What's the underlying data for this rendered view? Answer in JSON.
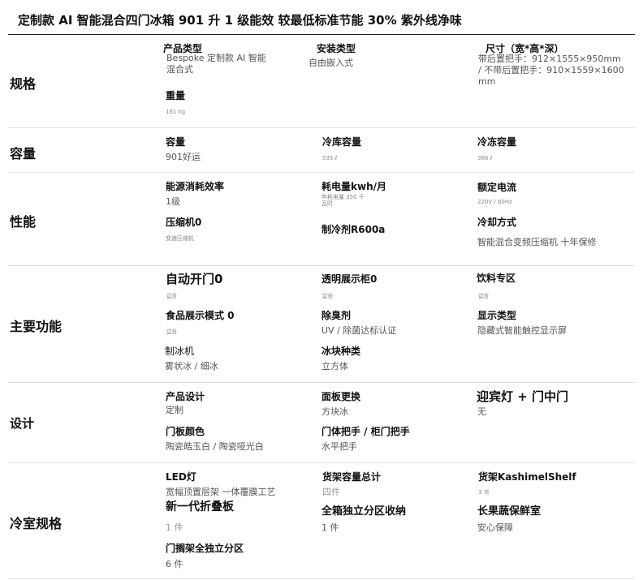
{
  "title": "定制款 AI 智能混合四门冰箱 901 升 1 级能效 较最低标准节能 30% 紫外线净味",
  "sections": [
    {
      "name": "规格",
      "items": [
        {
          "label": "产品类型",
          "value": "Bespoke 定制款 AI 智能混合式"
        },
        {
          "label": "安装类型",
          "value": "自由嵌入式"
        },
        {
          "label": "尺寸（宽*高*深）",
          "value": "带后置把手：912×1555×950mm / 不带后置把手：910×1559×1600mm"
        },
        {
          "label": "重量",
          "value": "161 kg"
        }
      ]
    },
    {
      "name": "容量",
      "items": [
        {
          "label": "容量",
          "value": "901好运"
        },
        {
          "label": "冷库容量",
          "value": "535 ℓ"
        },
        {
          "label": "冷冻容量",
          "value": "366 ℓ"
        }
      ]
    },
    {
      "name": "性能",
      "items": [
        {
          "label": "能源消耗效率",
          "value": "1级"
        },
        {
          "label": "耗电量kwh/月",
          "value": "年耗电量 350 千瓦时"
        },
        {
          "label": "额定电流",
          "value": "220V / 60Hz"
        },
        {
          "label": "压缩机0",
          "value": "变速压缩机"
        },
        {
          "label": "制冷剂R600a",
          "value": ""
        },
        {
          "label": "冷却方式",
          "value": "智能混合变频压缩机 十年保修"
        }
      ]
    },
    {
      "name": "主要功能",
      "items": [
        {
          "label": "自动开门0",
          "value": "없음"
        },
        {
          "label": "透明展示柜0",
          "value": "없음"
        },
        {
          "label": "饮料专区",
          "value": "없음"
        },
        {
          "label": "食品展示模式 0",
          "value": "없음"
        },
        {
          "label": "除臭剂",
          "value": "UV / 除菌达标认证"
        },
        {
          "label": "显示类型",
          "value": "隐藏式智能触控显示屏"
        },
        {
          "label": "制冰机",
          "value": "雾状冰 / 细冰"
        },
        {
          "label": "冰块种类",
          "value": "立方体"
        }
      ]
    },
    {
      "name": "设计",
      "items": [
        {
          "label": "产品设计",
          "value": "定制"
        },
        {
          "label": "面板更换",
          "value": "方块冰"
        },
        {
          "label": "迎宾灯 + 门中门",
          "value": "无"
        },
        {
          "label": "门板颜色",
          "value": "陶瓷皓玉白 / 陶瓷哑光白"
        },
        {
          "label": "门体把手 / 柜门把手",
          "value": "水平把手"
        }
      ]
    },
    {
      "name": "冷室规格",
      "items": [
        {
          "label": "LED灯",
          "value": "宽幅顶置层架 一体覆膜工艺"
        },
        {
          "label": "货架容量总计",
          "value": "四件"
        },
        {
          "label": "货架KashimelShelf",
          "value": "3 개"
        },
        {
          "label": "新一代折叠板",
          "value": "1 件"
        },
        {
          "label": "全箱独立分区收纳",
          "value": "1 件"
        },
        {
          "label": "长果蔬保鲜室",
          "value": "安心保障"
        },
        {
          "label": "门搁架全独立分区",
          "value": "6 件"
        }
      ]
    }
  ]
}
